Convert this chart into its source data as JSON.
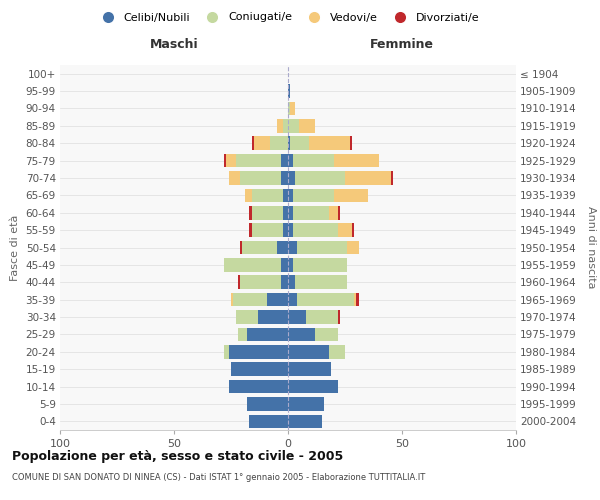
{
  "age_groups": [
    "0-4",
    "5-9",
    "10-14",
    "15-19",
    "20-24",
    "25-29",
    "30-34",
    "35-39",
    "40-44",
    "45-49",
    "50-54",
    "55-59",
    "60-64",
    "65-69",
    "70-74",
    "75-79",
    "80-84",
    "85-89",
    "90-94",
    "95-99",
    "100+"
  ],
  "birth_years": [
    "2000-2004",
    "1995-1999",
    "1990-1994",
    "1985-1989",
    "1980-1984",
    "1975-1979",
    "1970-1974",
    "1965-1969",
    "1960-1964",
    "1955-1959",
    "1950-1954",
    "1945-1949",
    "1940-1944",
    "1935-1939",
    "1930-1934",
    "1925-1929",
    "1920-1924",
    "1915-1919",
    "1910-1914",
    "1905-1909",
    "≤ 1904"
  ],
  "colors": {
    "celibi": "#4472a8",
    "coniugati": "#c5d9a0",
    "vedovi": "#f5c97a",
    "divorziati": "#c0282c"
  },
  "maschi": {
    "celibi": [
      17,
      18,
      26,
      25,
      26,
      18,
      13,
      9,
      3,
      3,
      5,
      2,
      2,
      2,
      3,
      3,
      0,
      0,
      0,
      0,
      0
    ],
    "coniugati": [
      0,
      0,
      0,
      0,
      2,
      4,
      10,
      15,
      18,
      25,
      15,
      14,
      14,
      14,
      18,
      20,
      8,
      2,
      0,
      0,
      0
    ],
    "vedovi": [
      0,
      0,
      0,
      0,
      0,
      0,
      0,
      1,
      0,
      0,
      0,
      0,
      0,
      3,
      5,
      4,
      7,
      3,
      0,
      0,
      0
    ],
    "divorziati": [
      0,
      0,
      0,
      0,
      0,
      0,
      0,
      0,
      1,
      0,
      1,
      1,
      1,
      0,
      0,
      1,
      1,
      0,
      0,
      0,
      0
    ]
  },
  "femmine": {
    "celibi": [
      15,
      16,
      22,
      19,
      18,
      12,
      8,
      4,
      3,
      2,
      4,
      2,
      2,
      2,
      3,
      2,
      1,
      0,
      0,
      1,
      0
    ],
    "coniugati": [
      0,
      0,
      0,
      0,
      7,
      10,
      14,
      25,
      23,
      24,
      22,
      20,
      16,
      18,
      22,
      18,
      8,
      5,
      1,
      0,
      0
    ],
    "vedovi": [
      0,
      0,
      0,
      0,
      0,
      0,
      0,
      1,
      0,
      0,
      5,
      6,
      4,
      15,
      20,
      20,
      18,
      7,
      2,
      0,
      0
    ],
    "divorziati": [
      0,
      0,
      0,
      0,
      0,
      0,
      1,
      1,
      0,
      0,
      0,
      1,
      1,
      0,
      1,
      0,
      1,
      0,
      0,
      0,
      0
    ]
  },
  "xlim": 100,
  "title": "Popolazione per età, sesso e stato civile - 2005",
  "subtitle": "COMUNE DI SAN DONATO DI NINEA (CS) - Dati ISTAT 1° gennaio 2005 - Elaborazione TUTTITALIA.IT",
  "ylabel_left": "Fasce di età",
  "ylabel_right": "Anni di nascita",
  "legend_labels": [
    "Celibi/Nubili",
    "Coniugati/e",
    "Vedovi/e",
    "Divorziati/e"
  ],
  "maschi_label": "Maschi",
  "femmine_label": "Femmine",
  "bg_color": "#f5f5f5",
  "plot_bg": "#f0f0f0"
}
